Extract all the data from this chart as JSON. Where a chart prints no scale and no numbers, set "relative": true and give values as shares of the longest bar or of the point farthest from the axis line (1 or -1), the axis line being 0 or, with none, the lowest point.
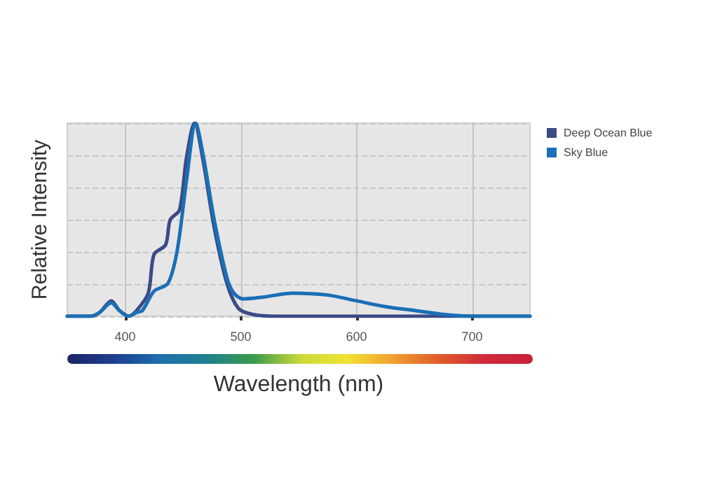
{
  "chart_data": {
    "type": "line",
    "relative": true,
    "xlabel": "Wavelength (nm)",
    "ylabel": "Relative Intensity",
    "xlim": [
      350,
      750
    ],
    "xticks": [
      400,
      500,
      600,
      700
    ],
    "grid": true,
    "legend": "top right",
    "marker": "none",
    "line_style": "solid",
    "series": [
      {
        "name": "Deep Ocean Blue",
        "color": "#3b4a86",
        "x": [
          350,
          370,
          378,
          388,
          395,
          403,
          410,
          420,
          425,
          435,
          439,
          447,
          453,
          460,
          467,
          477,
          488,
          498,
          510,
          530,
          600,
          700,
          750
        ],
        "values": [
          0,
          0,
          0.02,
          0.08,
          0.03,
          0,
          0.03,
          0.12,
          0.32,
          0.37,
          0.5,
          0.55,
          0.82,
          1,
          0.82,
          0.46,
          0.17,
          0.04,
          0.01,
          0,
          0,
          0,
          0
        ]
      },
      {
        "name": "Sky Blue",
        "color": "#1a6fb5",
        "x": [
          350,
          370,
          378,
          388,
          395,
          403,
          410,
          415,
          425,
          437,
          445,
          453,
          461,
          467,
          477,
          488,
          494,
          502,
          520,
          545,
          575,
          600,
          625,
          650,
          675,
          700,
          750
        ],
        "values": [
          0,
          0,
          0.02,
          0.07,
          0.03,
          0,
          0.02,
          0.03,
          0.13,
          0.17,
          0.34,
          0.7,
          1,
          0.85,
          0.5,
          0.2,
          0.12,
          0.09,
          0.1,
          0.12,
          0.11,
          0.08,
          0.05,
          0.03,
          0.01,
          0,
          0
        ]
      }
    ]
  }
}
